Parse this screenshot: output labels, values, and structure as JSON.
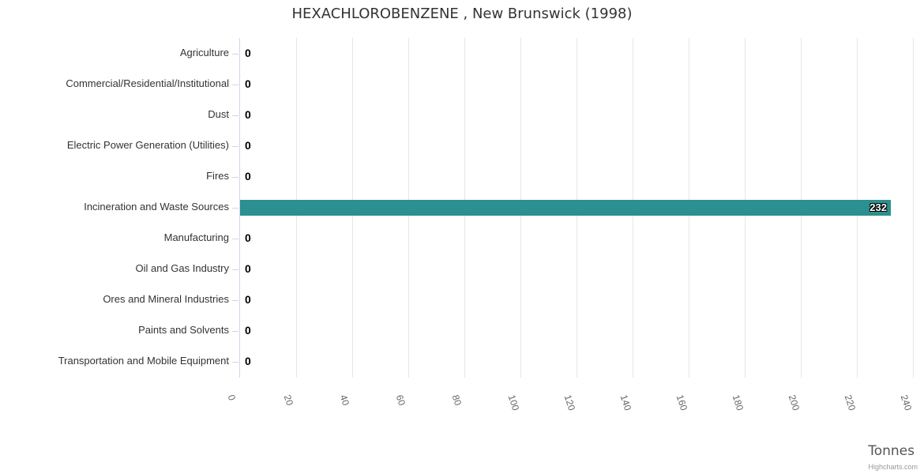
{
  "chart": {
    "credit": "Highcharts.com"
  },
  "chart_data": {
    "type": "bar",
    "orientation": "horizontal",
    "title": "HEXACHLOROBENZENE , New Brunswick (1998)",
    "categories": [
      "Agriculture",
      "Commercial/Residential/Institutional",
      "Dust",
      "Electric Power Generation (Utilities)",
      "Fires",
      "Incineration and Waste Sources",
      "Manufacturing",
      "Oil and Gas Industry",
      "Ores and Mineral Industries",
      "Paints and Solvents",
      "Transportation and Mobile Equipment"
    ],
    "values": [
      0,
      0,
      0,
      0,
      0,
      232,
      0,
      0,
      0,
      0,
      0
    ],
    "value_axis_label": "Tonnes",
    "xlim": [
      0,
      240
    ],
    "ticks": [
      0,
      20,
      40,
      60,
      80,
      100,
      120,
      140,
      160,
      180,
      200,
      220,
      240
    ],
    "grid": true,
    "legend": "none",
    "bar_color": "#2b908f",
    "grid_color": "#e6e6e6",
    "axis_line_color": "#ccd6eb"
  }
}
